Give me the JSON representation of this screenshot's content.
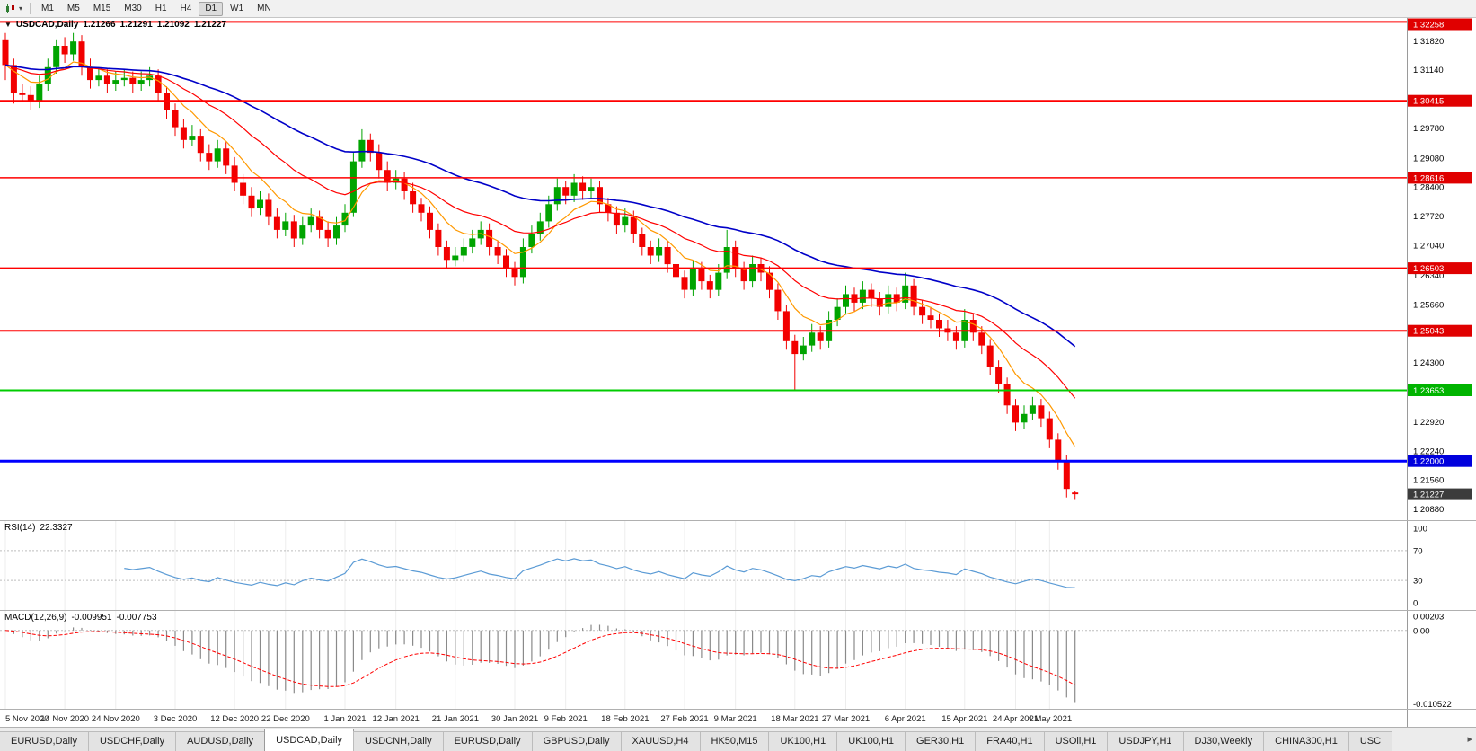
{
  "toolbar": {
    "chart_type_icon": "candlestick-chart-icon",
    "dropdown_icon": "chevron-down-icon",
    "timeframes": [
      "M1",
      "M5",
      "M15",
      "M30",
      "H1",
      "H4",
      "D1",
      "W1",
      "MN"
    ],
    "active_timeframe": "D1"
  },
  "chart_header": {
    "collapse_icon": "triangle-down-icon",
    "symbol": "USDCAD,Daily",
    "open": "1.21266",
    "high": "1.21291",
    "low": "1.21092",
    "close": "1.21227"
  },
  "price_axis": {
    "labels": [
      "1.31820",
      "1.31140",
      "1.30460",
      "1.29780",
      "1.29080",
      "1.28400",
      "1.27720",
      "1.27040",
      "1.26340",
      "1.25660",
      "1.24980",
      "1.24300",
      "1.23600",
      "1.22920",
      "1.22240",
      "1.21560",
      "1.20880"
    ],
    "badges": [
      {
        "text": "1.32258",
        "color": "#e00000"
      },
      {
        "text": "1.30415",
        "color": "#e00000"
      },
      {
        "text": "1.28616",
        "color": "#e00000"
      },
      {
        "text": "1.26503",
        "color": "#e00000"
      },
      {
        "text": "1.25043",
        "color": "#e00000"
      },
      {
        "text": "1.23653",
        "color": "#00b400"
      },
      {
        "text": "1.22000",
        "color": "#0000dd"
      },
      {
        "text": "1.21227",
        "color": "#3c3c3c"
      }
    ]
  },
  "indicator_labels": {
    "rsi_name": "RSI(14)",
    "rsi_value": "22.3327",
    "macd_name": "MACD(12,26,9)",
    "macd_value": "-0.009951",
    "macd_signal": "-0.007753"
  },
  "chart_data": {
    "type": "candlestick",
    "symbol": "USDCAD",
    "timeframe": "Daily",
    "up_color": "#00a400",
    "down_color": "#f20000",
    "price_range": {
      "top": 1.3235,
      "bottom": 1.2062
    },
    "x_labels": [
      "5 Nov 2020",
      "14 Nov 2020",
      "24 Nov 2020",
      "3 Dec 2020",
      "12 Dec 2020",
      "22 Dec 2020",
      "1 Jan 2021",
      "12 Jan 2021",
      "21 Jan 2021",
      "30 Jan 2021",
      "9 Feb 2021",
      "18 Feb 2021",
      "27 Feb 2021",
      "9 Mar 2021",
      "18 Mar 2021",
      "27 Mar 2021",
      "6 Apr 2021",
      "15 Apr 2021",
      "24 Apr 2021",
      "4 May 2021"
    ],
    "h_lines": [
      {
        "price": 1.32258,
        "color": "#ff0000",
        "width": 2
      },
      {
        "price": 1.30415,
        "color": "#ff0000",
        "width": 2
      },
      {
        "price": 1.28616,
        "color": "#ff0000",
        "width": 1.5
      },
      {
        "price": 1.26503,
        "color": "#ff0000",
        "width": 2
      },
      {
        "price": 1.25043,
        "color": "#ff0000",
        "width": 2
      },
      {
        "price": 1.23653,
        "color": "#00cc00",
        "width": 2
      },
      {
        "price": 1.22,
        "color": "#0000ff",
        "width": 3
      }
    ],
    "last_price": 1.21227,
    "moving_averages": [
      {
        "period": 8,
        "color": "#ff9900",
        "width": 1.2,
        "label": "fast-ma"
      },
      {
        "period": 20,
        "color": "#ff0000",
        "width": 1.2,
        "label": "medium-ma"
      },
      {
        "period": 45,
        "color": "#0000c8",
        "width": 1.6,
        "label": "slow-ma"
      }
    ],
    "indicators": {
      "rsi": {
        "label": "RSI(14)",
        "value": "22.3327",
        "period": 14,
        "levels": [
          100,
          70,
          30,
          0
        ],
        "line_color": "#5b9bd5"
      },
      "macd": {
        "label": "MACD(12,26,9)",
        "value": "-0.009951",
        "signal_value": "-0.007753",
        "axis_labels": [
          "0.00203",
          "0.00",
          "-0.010522"
        ],
        "axis_values": [
          0.00203,
          0,
          -0.010522
        ],
        "range": {
          "max": 0.0028,
          "min": -0.0112
        },
        "hist_color": "#8a8a8a",
        "signal_color": "#ff0000"
      }
    },
    "candles": [
      [
        1.3185,
        1.32,
        1.309,
        1.3125
      ],
      [
        1.3125,
        1.314,
        1.3035,
        1.306
      ],
      [
        1.306,
        1.308,
        1.304,
        1.3055
      ],
      [
        1.3055,
        1.3075,
        1.302,
        1.304
      ],
      [
        1.304,
        1.31,
        1.3025,
        1.308
      ],
      [
        1.308,
        1.314,
        1.3065,
        1.312
      ],
      [
        1.312,
        1.3185,
        1.3105,
        1.317
      ],
      [
        1.317,
        1.319,
        1.313,
        1.315
      ],
      [
        1.315,
        1.32,
        1.3135,
        1.318
      ],
      [
        1.318,
        1.3195,
        1.31,
        1.312
      ],
      [
        1.312,
        1.314,
        1.307,
        1.309
      ],
      [
        1.309,
        1.312,
        1.3075,
        1.31
      ],
      [
        1.31,
        1.3115,
        1.306,
        1.308
      ],
      [
        1.308,
        1.311,
        1.3065,
        1.309
      ],
      [
        1.309,
        1.3115,
        1.3075,
        1.3095
      ],
      [
        1.3095,
        1.311,
        1.306,
        1.308
      ],
      [
        1.308,
        1.311,
        1.3065,
        1.309
      ],
      [
        1.309,
        1.312,
        1.3075,
        1.31
      ],
      [
        1.31,
        1.3115,
        1.304,
        1.306
      ],
      [
        1.306,
        1.3075,
        1.3,
        1.302
      ],
      [
        1.302,
        1.3035,
        1.296,
        1.298
      ],
      [
        1.298,
        1.3,
        1.293,
        1.295
      ],
      [
        1.295,
        1.2985,
        1.2935,
        1.296
      ],
      [
        1.296,
        1.2975,
        1.29,
        1.292
      ],
      [
        1.292,
        1.294,
        1.288,
        1.29
      ],
      [
        1.29,
        1.295,
        1.2885,
        1.293
      ],
      [
        1.293,
        1.2945,
        1.287,
        1.289
      ],
      [
        1.289,
        1.291,
        1.283,
        1.285
      ],
      [
        1.285,
        1.287,
        1.28,
        1.282
      ],
      [
        1.282,
        1.284,
        1.277,
        1.279
      ],
      [
        1.279,
        1.283,
        1.2775,
        1.281
      ],
      [
        1.281,
        1.2825,
        1.275,
        1.277
      ],
      [
        1.277,
        1.279,
        1.272,
        1.274
      ],
      [
        1.274,
        1.278,
        1.2725,
        1.276
      ],
      [
        1.276,
        1.2775,
        1.27,
        1.272
      ],
      [
        1.272,
        1.277,
        1.2705,
        1.275
      ],
      [
        1.275,
        1.279,
        1.2735,
        1.277
      ],
      [
        1.277,
        1.2785,
        1.272,
        1.274
      ],
      [
        1.274,
        1.276,
        1.27,
        1.272
      ],
      [
        1.272,
        1.277,
        1.2705,
        1.275
      ],
      [
        1.275,
        1.28,
        1.2735,
        1.278
      ],
      [
        1.278,
        1.292,
        1.277,
        1.29
      ],
      [
        1.29,
        1.2975,
        1.2885,
        1.295
      ],
      [
        1.295,
        1.2965,
        1.29,
        1.292
      ],
      [
        1.292,
        1.294,
        1.286,
        1.288
      ],
      [
        1.288,
        1.29,
        1.283,
        1.285
      ],
      [
        1.285,
        1.288,
        1.2835,
        1.286
      ],
      [
        1.286,
        1.2875,
        1.281,
        1.283
      ],
      [
        1.283,
        1.285,
        1.278,
        1.28
      ],
      [
        1.28,
        1.2815,
        1.276,
        1.278
      ],
      [
        1.278,
        1.2795,
        1.272,
        1.274
      ],
      [
        1.274,
        1.2755,
        1.268,
        1.27
      ],
      [
        1.27,
        1.2715,
        1.265,
        1.267
      ],
      [
        1.267,
        1.27,
        1.2655,
        1.268
      ],
      [
        1.268,
        1.272,
        1.2665,
        1.27
      ],
      [
        1.27,
        1.274,
        1.2685,
        1.272
      ],
      [
        1.272,
        1.276,
        1.2705,
        1.274
      ],
      [
        1.274,
        1.2755,
        1.268,
        1.27
      ],
      [
        1.27,
        1.2715,
        1.266,
        1.268
      ],
      [
        1.268,
        1.2695,
        1.263,
        1.265
      ],
      [
        1.265,
        1.2665,
        1.261,
        1.263
      ],
      [
        1.263,
        1.272,
        1.2615,
        1.27
      ],
      [
        1.27,
        1.275,
        1.2685,
        1.273
      ],
      [
        1.273,
        1.278,
        1.2715,
        1.276
      ],
      [
        1.276,
        1.282,
        1.2745,
        1.28
      ],
      [
        1.28,
        1.286,
        1.2785,
        1.284
      ],
      [
        1.284,
        1.2855,
        1.28,
        1.282
      ],
      [
        1.282,
        1.287,
        1.2805,
        1.285
      ],
      [
        1.285,
        1.2865,
        1.281,
        1.283
      ],
      [
        1.283,
        1.286,
        1.2815,
        1.284
      ],
      [
        1.284,
        1.2855,
        1.278,
        1.28
      ],
      [
        1.28,
        1.2815,
        1.276,
        1.278
      ],
      [
        1.278,
        1.2795,
        1.273,
        1.275
      ],
      [
        1.275,
        1.279,
        1.2735,
        1.277
      ],
      [
        1.277,
        1.2785,
        1.271,
        1.273
      ],
      [
        1.273,
        1.2745,
        1.268,
        1.27
      ],
      [
        1.27,
        1.2715,
        1.266,
        1.268
      ],
      [
        1.268,
        1.272,
        1.2665,
        1.27
      ],
      [
        1.27,
        1.2715,
        1.264,
        1.266
      ],
      [
        1.266,
        1.2675,
        1.261,
        1.263
      ],
      [
        1.263,
        1.2645,
        1.258,
        1.26
      ],
      [
        1.26,
        1.267,
        1.2585,
        1.265
      ],
      [
        1.265,
        1.2665,
        1.26,
        1.262
      ],
      [
        1.262,
        1.2635,
        1.258,
        1.26
      ],
      [
        1.26,
        1.266,
        1.2585,
        1.264
      ],
      [
        1.264,
        1.274,
        1.2625,
        1.27
      ],
      [
        1.27,
        1.2715,
        1.263,
        1.265
      ],
      [
        1.265,
        1.2665,
        1.26,
        1.262
      ],
      [
        1.262,
        1.268,
        1.2605,
        1.266
      ],
      [
        1.266,
        1.2675,
        1.262,
        1.264
      ],
      [
        1.264,
        1.2655,
        1.258,
        1.26
      ],
      [
        1.26,
        1.2615,
        1.253,
        1.255
      ],
      [
        1.255,
        1.2565,
        1.246,
        1.248
      ],
      [
        1.248,
        1.2495,
        1.2365,
        1.245
      ],
      [
        1.245,
        1.249,
        1.2435,
        1.247
      ],
      [
        1.247,
        1.252,
        1.2455,
        1.25
      ],
      [
        1.25,
        1.2515,
        1.246,
        1.248
      ],
      [
        1.248,
        1.255,
        1.2465,
        1.253
      ],
      [
        1.253,
        1.258,
        1.2515,
        1.256
      ],
      [
        1.256,
        1.261,
        1.2545,
        1.259
      ],
      [
        1.259,
        1.2605,
        1.255,
        1.257
      ],
      [
        1.257,
        1.262,
        1.2555,
        1.26
      ],
      [
        1.26,
        1.2615,
        1.256,
        1.258
      ],
      [
        1.258,
        1.2595,
        1.254,
        1.256
      ],
      [
        1.256,
        1.261,
        1.2545,
        1.259
      ],
      [
        1.259,
        1.2605,
        1.255,
        1.257
      ],
      [
        1.257,
        1.264,
        1.2555,
        1.261
      ],
      [
        1.261,
        1.2625,
        1.254,
        1.256
      ],
      [
        1.256,
        1.2575,
        1.252,
        1.254
      ],
      [
        1.254,
        1.256,
        1.251,
        1.253
      ],
      [
        1.253,
        1.2545,
        1.249,
        1.251
      ],
      [
        1.251,
        1.253,
        1.248,
        1.25
      ],
      [
        1.25,
        1.2515,
        1.246,
        1.248
      ],
      [
        1.248,
        1.2555,
        1.2465,
        1.253
      ],
      [
        1.253,
        1.2545,
        1.248,
        1.25
      ],
      [
        1.25,
        1.2515,
        1.245,
        1.247
      ],
      [
        1.247,
        1.2485,
        1.24,
        1.242
      ],
      [
        1.242,
        1.2435,
        1.236,
        1.238
      ],
      [
        1.238,
        1.2395,
        1.231,
        1.233
      ],
      [
        1.233,
        1.2345,
        1.227,
        1.229
      ],
      [
        1.229,
        1.233,
        1.2275,
        1.231
      ],
      [
        1.231,
        1.235,
        1.2295,
        1.233
      ],
      [
        1.233,
        1.2345,
        1.228,
        1.23
      ],
      [
        1.23,
        1.2315,
        1.223,
        1.225
      ],
      [
        1.225,
        1.2265,
        1.218,
        1.22
      ],
      [
        1.22,
        1.2215,
        1.2115,
        1.2135
      ],
      [
        1.21266,
        1.21291,
        1.21092,
        1.21227
      ]
    ]
  },
  "bottom_tabs": {
    "tabs": [
      "EURUSD,Daily",
      "USDCHF,Daily",
      "AUDUSD,Daily",
      "USDCAD,Daily",
      "USDCNH,Daily",
      "EURUSD,Daily",
      "GBPUSD,Daily",
      "XAUUSD,H4",
      "HK50,M15",
      "UK100,H1",
      "UK100,H1",
      "GER30,H1",
      "FRA40,H1",
      "USOil,H1",
      "USDJPY,H1",
      "DJ30,Weekly",
      "CHINA300,H1",
      "USC"
    ],
    "active_index": 3,
    "scroll_right_icon": "chevron-right-icon",
    "scroll_right_glyph": "▸"
  }
}
